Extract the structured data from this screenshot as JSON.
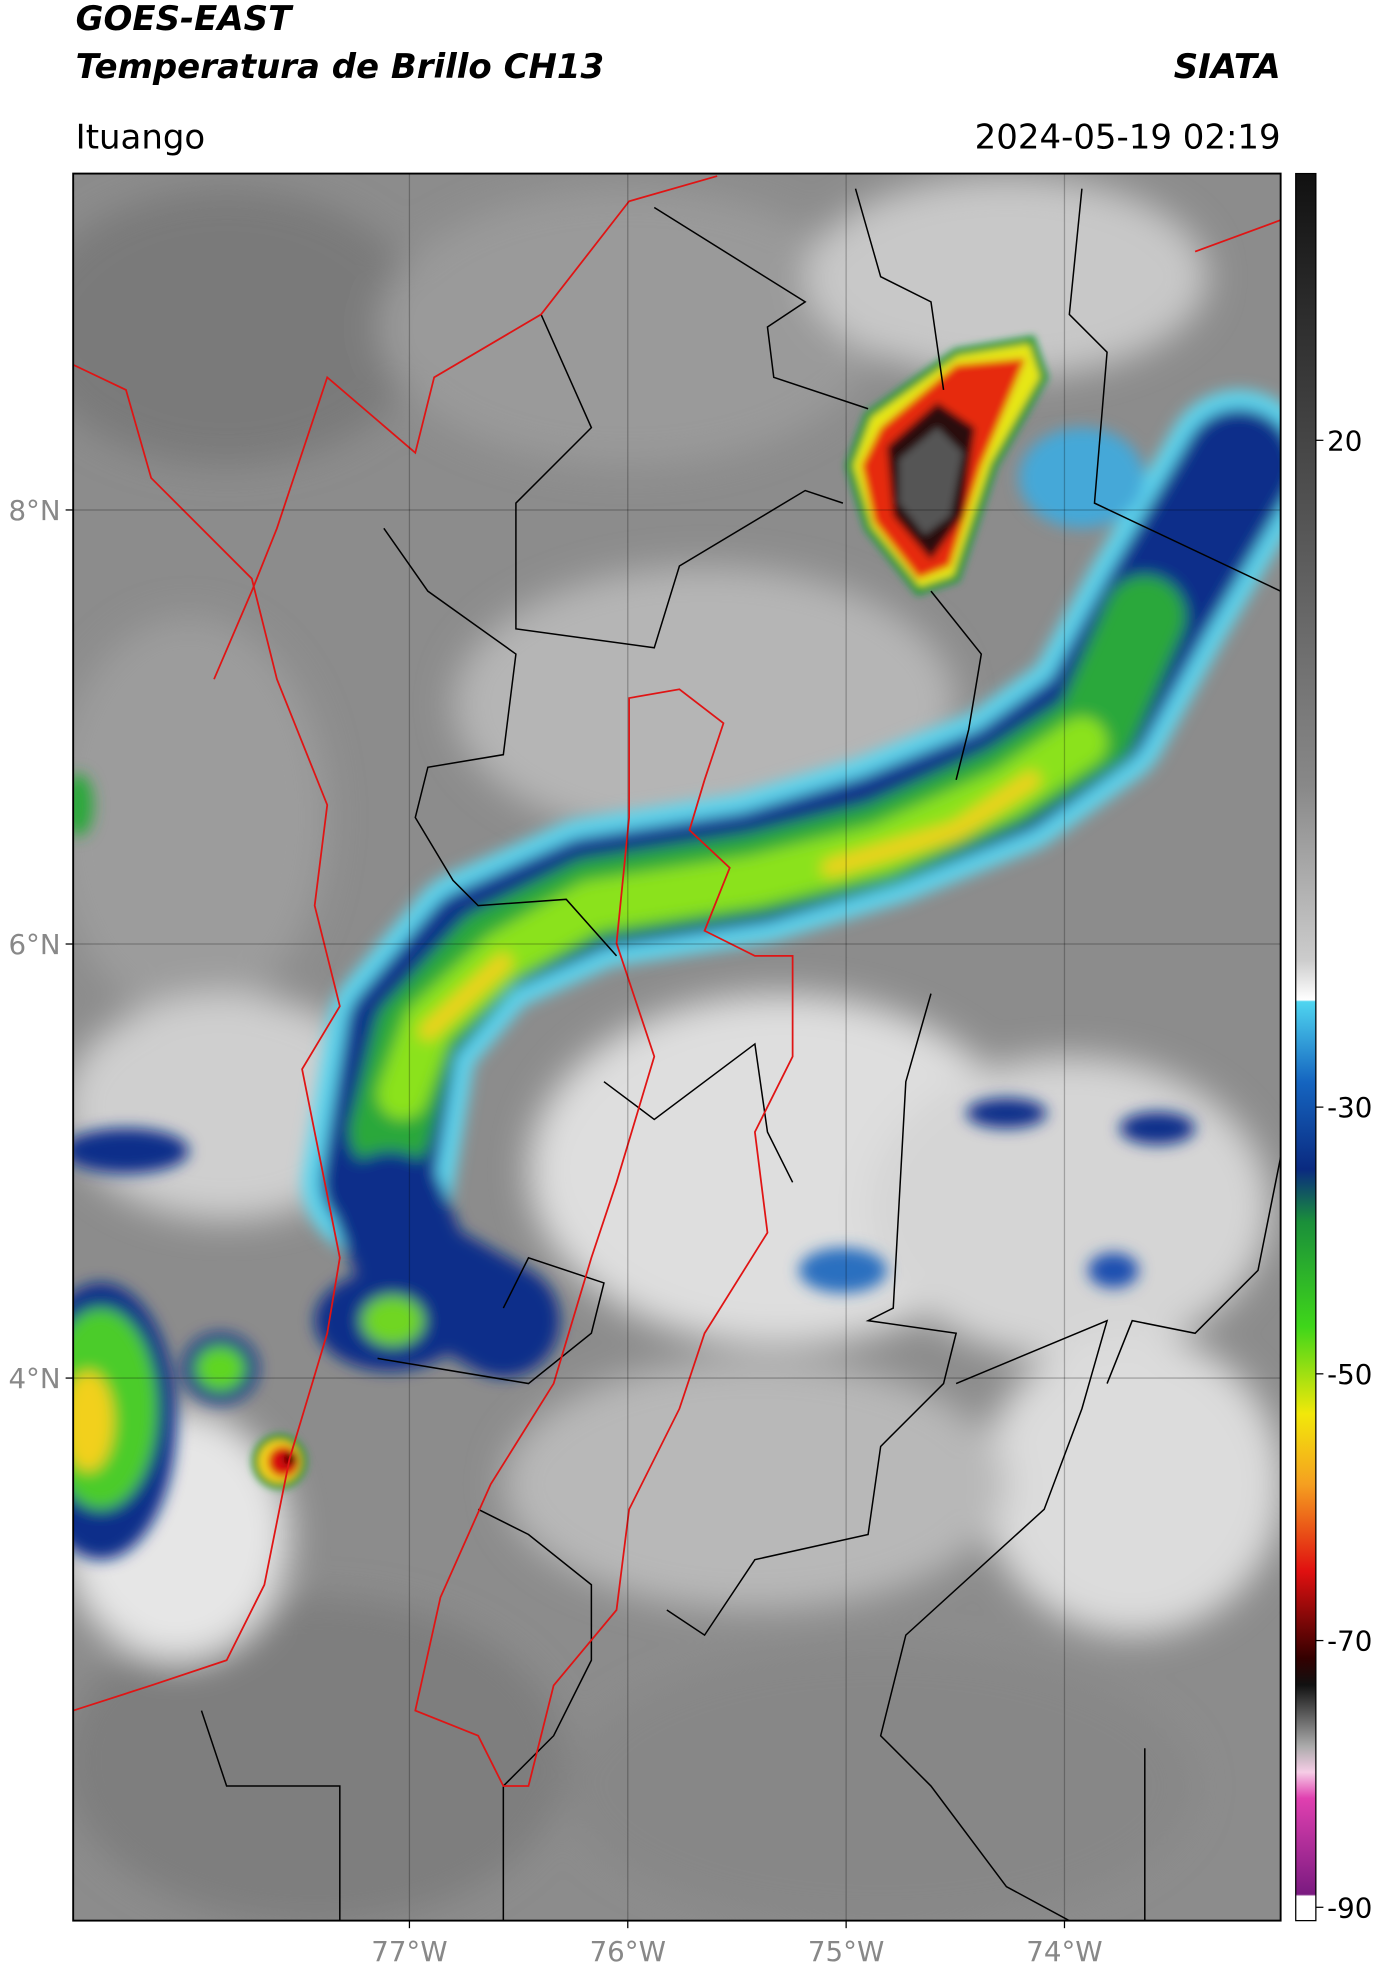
{
  "header": {
    "title": "GOES-EAST",
    "subtitle": "Temperatura de Brillo CH13",
    "source": "SIATA",
    "location": "Ituango",
    "timestamp": "2024-05-19 02:19"
  },
  "map": {
    "xlim": [
      -78.54,
      -73.01
    ],
    "ylim": [
      1.5,
      9.55
    ],
    "xticks": [
      {
        "value": -77,
        "label": "77°W"
      },
      {
        "value": -76,
        "label": "76°W"
      },
      {
        "value": -75,
        "label": "75°W"
      },
      {
        "value": -74,
        "label": "74°W"
      }
    ],
    "yticks": [
      {
        "value": 8,
        "label": "8°N"
      },
      {
        "value": 6,
        "label": "6°N"
      },
      {
        "value": 4,
        "label": "4°N"
      }
    ],
    "grid": true
  },
  "colorbar": {
    "lim": [
      -91,
      40
    ],
    "ticks": [
      20,
      -30,
      -50,
      -70,
      -90
    ]
  }
}
